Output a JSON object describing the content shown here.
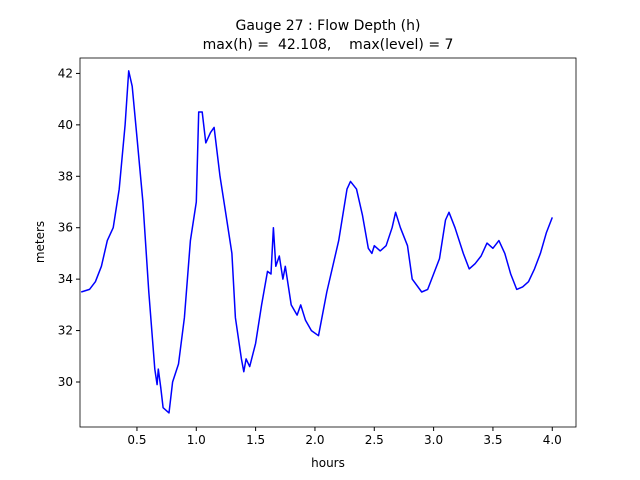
{
  "chart_data": {
    "type": "line",
    "title": [
      "Gauge 27 : Flow Depth (h)",
      "max(h) =  42.108,    max(level) = 7"
    ],
    "xlabel": "hours",
    "ylabel": "meters",
    "xlim": [
      0.02,
      4.2
    ],
    "ylim": [
      28.25,
      42.6
    ],
    "xticks": [
      0.5,
      {
        "value": 1,
        "label": "1.0"
      },
      1.5,
      {
        "value": 2,
        "label": "2.0"
      },
      2.5,
      {
        "value": 3,
        "label": "3.0"
      },
      3.5,
      {
        "value": 4,
        "label": "4.0"
      }
    ],
    "yticks": [
      30,
      32,
      34,
      36,
      38,
      40,
      42
    ],
    "grid": false,
    "series": [
      {
        "color": "#0000ff",
        "x": [
          0.03,
          0.1,
          0.15,
          0.2,
          0.25,
          0.3,
          0.35,
          0.4,
          0.43,
          0.46,
          0.5,
          0.55,
          0.6,
          0.65,
          0.67,
          0.68,
          0.7,
          0.72,
          0.77,
          0.8,
          0.85,
          0.9,
          0.95,
          1.0,
          1.02,
          1.05,
          1.08,
          1.12,
          1.15,
          1.2,
          1.25,
          1.3,
          1.33,
          1.38,
          1.4,
          1.42,
          1.45,
          1.5,
          1.55,
          1.6,
          1.63,
          1.65,
          1.67,
          1.7,
          1.73,
          1.75,
          1.8,
          1.85,
          1.88,
          1.92,
          1.97,
          2.03,
          2.1,
          2.2,
          2.27,
          2.3,
          2.35,
          2.4,
          2.45,
          2.48,
          2.5,
          2.55,
          2.6,
          2.65,
          2.68,
          2.72,
          2.78,
          2.82,
          2.9,
          2.95,
          3.0,
          3.05,
          3.1,
          3.13,
          3.18,
          3.25,
          3.3,
          3.35,
          3.4,
          3.45,
          3.5,
          3.55,
          3.6,
          3.65,
          3.7,
          3.75,
          3.8,
          3.85,
          3.9,
          3.95,
          4.0
        ],
        "values": [
          33.5,
          33.6,
          33.9,
          34.5,
          35.5,
          36.0,
          37.5,
          40.0,
          42.1,
          41.5,
          39.5,
          37.0,
          33.5,
          30.5,
          29.9,
          30.5,
          29.8,
          29.0,
          28.8,
          30.0,
          30.7,
          32.5,
          35.5,
          37.0,
          40.5,
          40.5,
          39.3,
          39.7,
          39.9,
          38.0,
          36.5,
          35.0,
          32.5,
          30.9,
          30.4,
          30.9,
          30.6,
          31.5,
          33.0,
          34.3,
          34.2,
          36.0,
          34.5,
          34.9,
          34.0,
          34.5,
          33.0,
          32.6,
          33.0,
          32.4,
          32.0,
          31.8,
          33.5,
          35.5,
          37.5,
          37.8,
          37.5,
          36.5,
          35.2,
          35.0,
          35.3,
          35.1,
          35.3,
          36.0,
          36.6,
          36.0,
          35.3,
          34.0,
          33.5,
          33.6,
          34.2,
          34.8,
          36.3,
          36.6,
          36.0,
          35.0,
          34.4,
          34.6,
          34.9,
          35.4,
          35.2,
          35.5,
          35.0,
          34.2,
          33.6,
          33.7,
          33.9,
          34.4,
          35.0,
          35.8,
          36.4
        ]
      }
    ]
  }
}
